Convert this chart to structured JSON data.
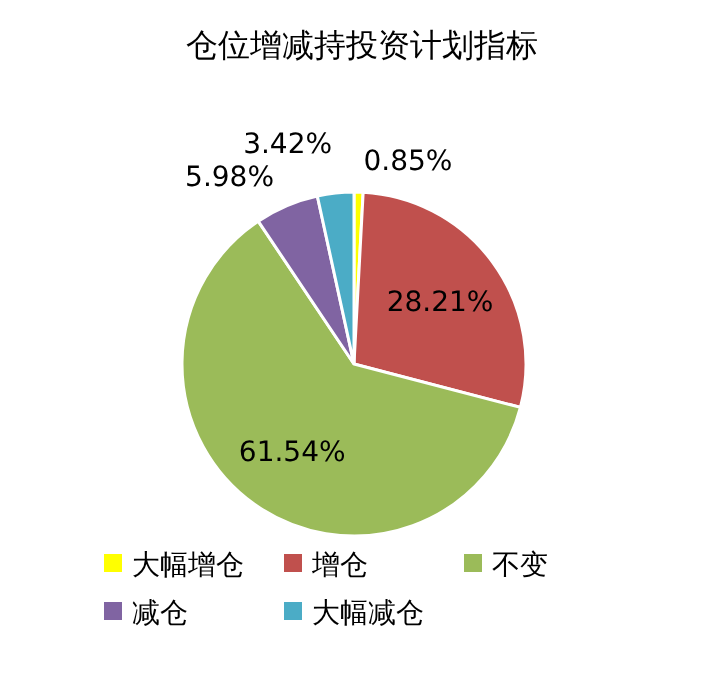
{
  "chart_data": {
    "type": "pie",
    "title": "仓位增减持投资计划指标",
    "categories": [
      "大幅增仓",
      "增仓",
      "不变",
      "减仓",
      "大幅减仓"
    ],
    "values": [
      0.85,
      28.21,
      61.54,
      5.98,
      3.42
    ],
    "colors": [
      "#ffff00",
      "#c0504d",
      "#9bbb59",
      "#8064a2",
      "#4bacc6"
    ],
    "value_labels": [
      "0.85%",
      "28.21%",
      "61.54%",
      "5.98%",
      "3.42%"
    ],
    "legend": "bottom"
  }
}
